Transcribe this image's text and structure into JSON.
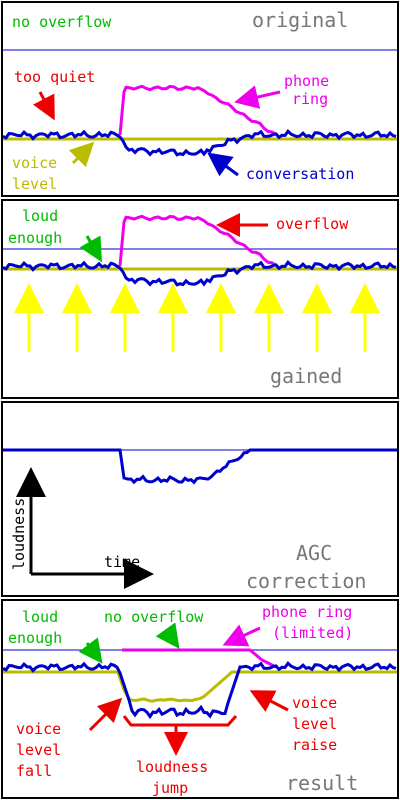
{
  "colors": {
    "frame": "#000000",
    "threshold": "#0000cc",
    "conversation": "#0000cc",
    "voice": "#bbbb00",
    "phone": "#ee00ee",
    "note_green": "#00bb00",
    "note_red": "#ee0000",
    "note_magenta": "#ee00ee",
    "note_blue": "#0000cc",
    "note_yellow": "#bbbb00",
    "title_gray": "#777777",
    "gain_arrows": "#ffff00"
  },
  "panels": {
    "original": {
      "title": "original",
      "no_overflow": "no overflow",
      "too_quiet": "too quiet",
      "phone_ring": [
        "phone",
        "ring"
      ],
      "voice_level": [
        "voice",
        "level"
      ],
      "conversation": "conversation"
    },
    "gained": {
      "title": "gained",
      "loud_enough": [
        "loud",
        "enough"
      ],
      "overflow": "overflow"
    },
    "agc": {
      "title": [
        "AGC",
        "correction"
      ],
      "y_axis": "loudness",
      "x_axis": "time"
    },
    "result": {
      "title": "result",
      "loud_enough": [
        "loud",
        "enough"
      ],
      "no_overflow": "no overflow",
      "phone_ring": [
        "phone ring",
        "(limited)"
      ],
      "voice_fall": [
        "voice",
        "level",
        "fall"
      ],
      "voice_raise": [
        "voice",
        "level",
        "raise"
      ],
      "loudness_jump": [
        "loudness",
        "jump"
      ]
    }
  }
}
